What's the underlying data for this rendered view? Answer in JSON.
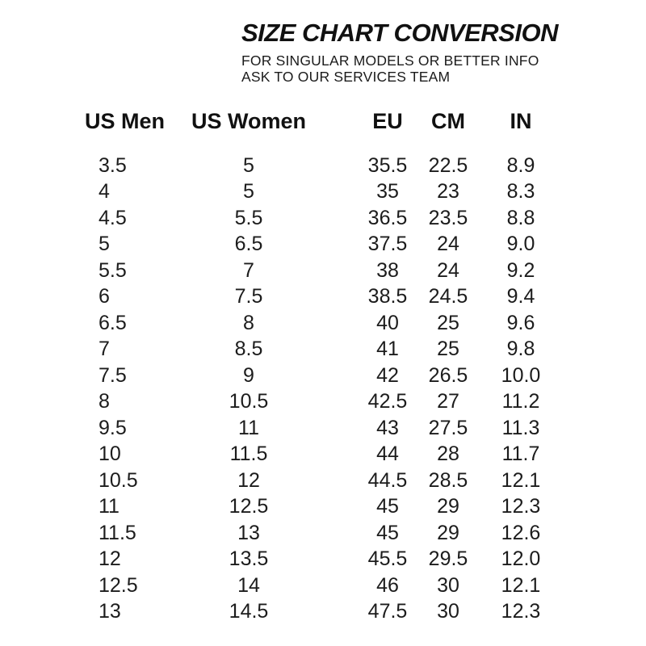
{
  "page": {
    "background_color": "#ffffff",
    "text_color": "#161616"
  },
  "header": {
    "title": "SIZE CHART CONVERSION",
    "subtitle_line1": "FOR SINGULAR MODELS OR BETTER INFO",
    "subtitle_line2": "ASK TO OUR SERVICES TEAM"
  },
  "chart_data": {
    "type": "table",
    "title": "SIZE CHART CONVERSION",
    "columns": [
      "US Men",
      "US Women",
      "EU",
      "CM",
      "IN"
    ],
    "rows": [
      [
        "3.5",
        "5",
        "35.5",
        "22.5",
        "8.9"
      ],
      [
        "4",
        "5",
        "35",
        "23",
        "8.3"
      ],
      [
        "4.5",
        "5.5",
        "36.5",
        "23.5",
        "8.8"
      ],
      [
        "5",
        "6.5",
        "37.5",
        "24",
        "9.0"
      ],
      [
        "5.5",
        "7",
        "38",
        "24",
        "9.2"
      ],
      [
        "6",
        "7.5",
        "38.5",
        "24.5",
        "9.4"
      ],
      [
        "6.5",
        "8",
        "40",
        "25",
        "9.6"
      ],
      [
        "7",
        "8.5",
        "41",
        "25",
        "9.8"
      ],
      [
        "7.5",
        "9",
        "42",
        "26.5",
        "10.0"
      ],
      [
        "8",
        "10.5",
        "42.5",
        "27",
        "11.2"
      ],
      [
        "9.5",
        "11",
        "43",
        "27.5",
        "11.3"
      ],
      [
        "10",
        "11.5",
        "44",
        "28",
        "11.7"
      ],
      [
        "10.5",
        "12",
        "44.5",
        "28.5",
        "12.1"
      ],
      [
        "11",
        "12.5",
        "45",
        "29",
        "12.3"
      ],
      [
        "11.5",
        "13",
        "45",
        "29",
        "12.6"
      ],
      [
        "12",
        "13.5",
        "45.5",
        "29.5",
        "12.0"
      ],
      [
        "12.5",
        "14",
        "46",
        "30",
        "12.1"
      ],
      [
        "13",
        "14.5",
        "47.5",
        "30",
        "12.3"
      ]
    ]
  }
}
